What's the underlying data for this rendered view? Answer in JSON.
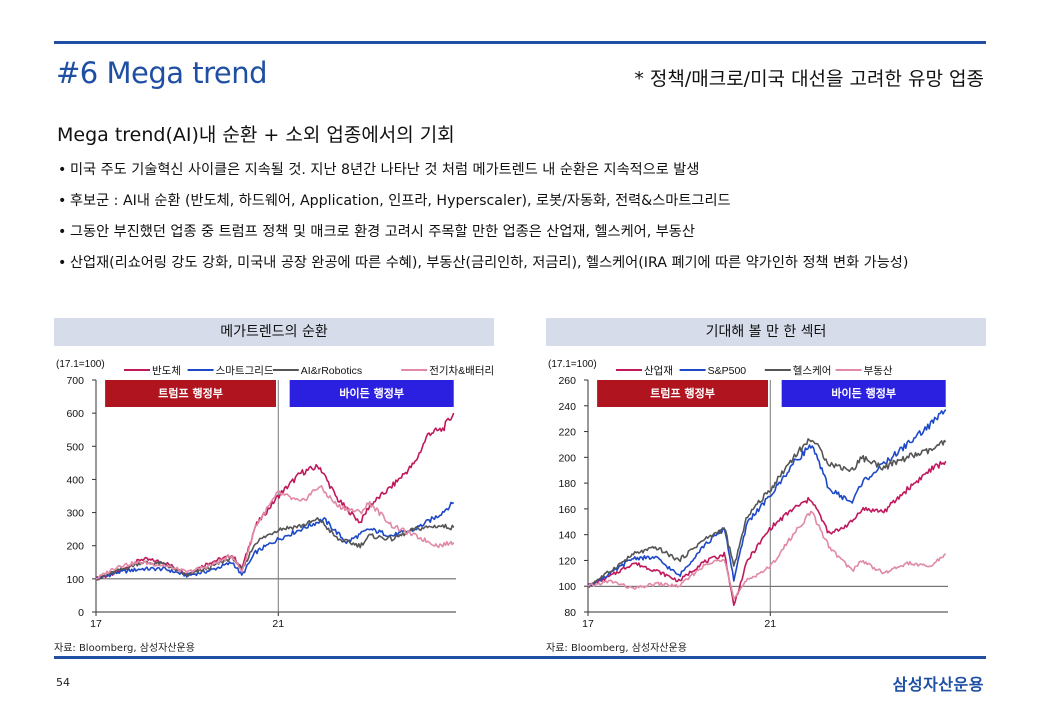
{
  "header": {
    "title": "#6 Mega trend",
    "subtitle": "* 정책/매크로/미국 대선을 고려한 유망 업종"
  },
  "section_title": "Mega trend(AI)내 순환 + 소외 업종에서의 기회",
  "bullets": [
    "미국 주도 기술혁신 사이클은 지속될 것. 지난 8년간 나타난 것 처럼 메가트렌드 내 순환은 지속적으로 발생",
    "후보군 : AI내 순환 (반도체, 하드웨어, Application, 인프라, Hyperscaler), 로봇/자동화, 전력&스마트그리드",
    "그동안 부진했던 업종 중 트럼프 정책 및 매크로 환경 고려시 주목할 만한 업종은 산업재, 헬스케어, 부동산",
    "산업재(리쇼어링 강도 강화, 미국내 공장 완공에 따른 수혜), 부동산(금리인하, 저금리), 헬스케어(IRA 폐기에 따른 약가인하 정책 변화 가능성)"
  ],
  "footer": {
    "page_number": "54",
    "brand": "삼성자산운용"
  },
  "colors": {
    "accent": "#1f4fa3",
    "panel_header": "#d6dcea",
    "trump_band": "#b0151f",
    "biden_band": "#2b1fe0"
  },
  "chart_data": [
    {
      "type": "line",
      "title": "메가트렌드의 순환",
      "unit_label": "(17.1=100)",
      "source": "자료: Bloomberg, 삼성자산운용",
      "x_range": [
        2017.0,
        2024.9
      ],
      "x_ticks": [
        {
          "value": 2017.0,
          "label": "17"
        },
        {
          "value": 2021.0,
          "label": "21"
        }
      ],
      "ylim": [
        0,
        700
      ],
      "y_ticks": [
        0,
        100,
        200,
        300,
        400,
        500,
        600,
        700
      ],
      "baseline": 100,
      "divider_x": 2021.0,
      "bands": [
        {
          "label": "트럼프 행정부",
          "start": 2017.2,
          "end": 2020.95,
          "color": "#b0151f"
        },
        {
          "label": "바이든 행정부",
          "start": 2021.25,
          "end": 2024.85,
          "color": "#2b1fe0"
        }
      ],
      "legend_position": "top",
      "series": [
        {
          "name": "반도체",
          "color": "#c0185c",
          "x": [
            2017.0,
            2017.5,
            2018.0,
            2018.5,
            2019.0,
            2019.5,
            2020.0,
            2020.2,
            2020.5,
            2021.0,
            2021.5,
            2021.9,
            2022.3,
            2022.8,
            2023.0,
            2023.5,
            2024.0,
            2024.3,
            2024.6,
            2024.85
          ],
          "y": [
            100,
            120,
            160,
            150,
            115,
            150,
            170,
            130,
            260,
            350,
            420,
            440,
            340,
            270,
            320,
            380,
            450,
            540,
            550,
            600
          ]
        },
        {
          "name": "스마트그리드",
          "color": "#1d49c9",
          "x": [
            2017.0,
            2017.5,
            2018.0,
            2018.5,
            2019.0,
            2019.5,
            2020.0,
            2020.2,
            2020.5,
            2021.0,
            2021.5,
            2022.0,
            2022.5,
            2023.0,
            2023.5,
            2024.0,
            2024.5,
            2024.85
          ],
          "y": [
            100,
            120,
            130,
            130,
            110,
            125,
            150,
            110,
            180,
            220,
            250,
            280,
            210,
            250,
            230,
            250,
            290,
            330
          ]
        },
        {
          "name": "AI&rRobotics",
          "color": "#555555",
          "x": [
            2017.0,
            2017.5,
            2018.0,
            2018.5,
            2019.0,
            2019.5,
            2020.0,
            2020.2,
            2020.5,
            2021.0,
            2021.5,
            2021.9,
            2022.3,
            2022.8,
            2023.0,
            2023.5,
            2024.0,
            2024.5,
            2024.85
          ],
          "y": [
            100,
            125,
            150,
            145,
            110,
            135,
            165,
            125,
            210,
            250,
            260,
            280,
            220,
            200,
            230,
            220,
            250,
            260,
            255
          ]
        },
        {
          "name": "전기차&배터리",
          "color": "#e08aa6",
          "x": [
            2017.0,
            2017.5,
            2018.0,
            2018.5,
            2019.0,
            2019.5,
            2020.0,
            2020.2,
            2020.5,
            2021.0,
            2021.5,
            2021.9,
            2022.3,
            2022.8,
            2023.0,
            2023.5,
            2024.0,
            2024.5,
            2024.85
          ],
          "y": [
            100,
            140,
            150,
            140,
            120,
            140,
            170,
            120,
            260,
            360,
            330,
            380,
            320,
            300,
            330,
            260,
            230,
            200,
            210
          ]
        }
      ]
    },
    {
      "type": "line",
      "title": "기대해 볼 만 한 섹터",
      "unit_label": "(17.1=100)",
      "source": "자료: Bloomberg, 삼성자산운용",
      "x_range": [
        2017.0,
        2024.9
      ],
      "x_ticks": [
        {
          "value": 2017.0,
          "label": "17"
        },
        {
          "value": 2021.0,
          "label": "21"
        }
      ],
      "ylim": [
        80,
        260
      ],
      "y_ticks": [
        80,
        100,
        120,
        140,
        160,
        180,
        200,
        220,
        240,
        260
      ],
      "baseline": 100,
      "divider_x": 2021.0,
      "bands": [
        {
          "label": "트럼프 행정부",
          "start": 2017.2,
          "end": 2020.95,
          "color": "#b0151f"
        },
        {
          "label": "바이든 행정부",
          "start": 2021.25,
          "end": 2024.85,
          "color": "#2b1fe0"
        }
      ],
      "legend_position": "top",
      "series": [
        {
          "name": "산업재",
          "color": "#c0185c",
          "x": [
            2017.0,
            2017.5,
            2018.0,
            2018.5,
            2019.0,
            2019.5,
            2020.0,
            2020.2,
            2020.5,
            2021.0,
            2021.5,
            2021.9,
            2022.3,
            2022.8,
            2023.0,
            2023.5,
            2024.0,
            2024.5,
            2024.85
          ],
          "y": [
            100,
            108,
            118,
            112,
            104,
            118,
            125,
            85,
            120,
            145,
            160,
            168,
            140,
            150,
            160,
            158,
            175,
            190,
            197
          ]
        },
        {
          "name": "S&P500",
          "color": "#1d49c9",
          "x": [
            2017.0,
            2017.5,
            2018.0,
            2018.5,
            2019.0,
            2019.5,
            2020.0,
            2020.2,
            2020.5,
            2021.0,
            2021.5,
            2021.9,
            2022.3,
            2022.8,
            2023.0,
            2023.5,
            2024.0,
            2024.5,
            2024.85
          ],
          "y": [
            100,
            110,
            122,
            122,
            108,
            130,
            145,
            105,
            150,
            170,
            195,
            210,
            175,
            165,
            180,
            195,
            210,
            225,
            237
          ]
        },
        {
          "name": "헬스케어",
          "color": "#555555",
          "x": [
            2017.0,
            2017.5,
            2018.0,
            2018.5,
            2019.0,
            2019.5,
            2020.0,
            2020.2,
            2020.5,
            2021.0,
            2021.5,
            2021.9,
            2022.3,
            2022.8,
            2023.0,
            2023.5,
            2024.0,
            2024.5,
            2024.85
          ],
          "y": [
            100,
            112,
            125,
            130,
            120,
            135,
            145,
            115,
            155,
            175,
            200,
            215,
            195,
            190,
            200,
            192,
            200,
            205,
            212
          ]
        },
        {
          "name": "부동산",
          "color": "#e08aa6",
          "x": [
            2017.0,
            2017.5,
            2018.0,
            2018.5,
            2019.0,
            2019.5,
            2020.0,
            2020.2,
            2020.5,
            2021.0,
            2021.5,
            2021.9,
            2022.3,
            2022.8,
            2023.0,
            2023.5,
            2024.0,
            2024.5,
            2024.85
          ],
          "y": [
            100,
            104,
            98,
            102,
            100,
            115,
            122,
            90,
            105,
            115,
            140,
            158,
            130,
            112,
            120,
            110,
            118,
            115,
            125
          ]
        }
      ]
    }
  ]
}
